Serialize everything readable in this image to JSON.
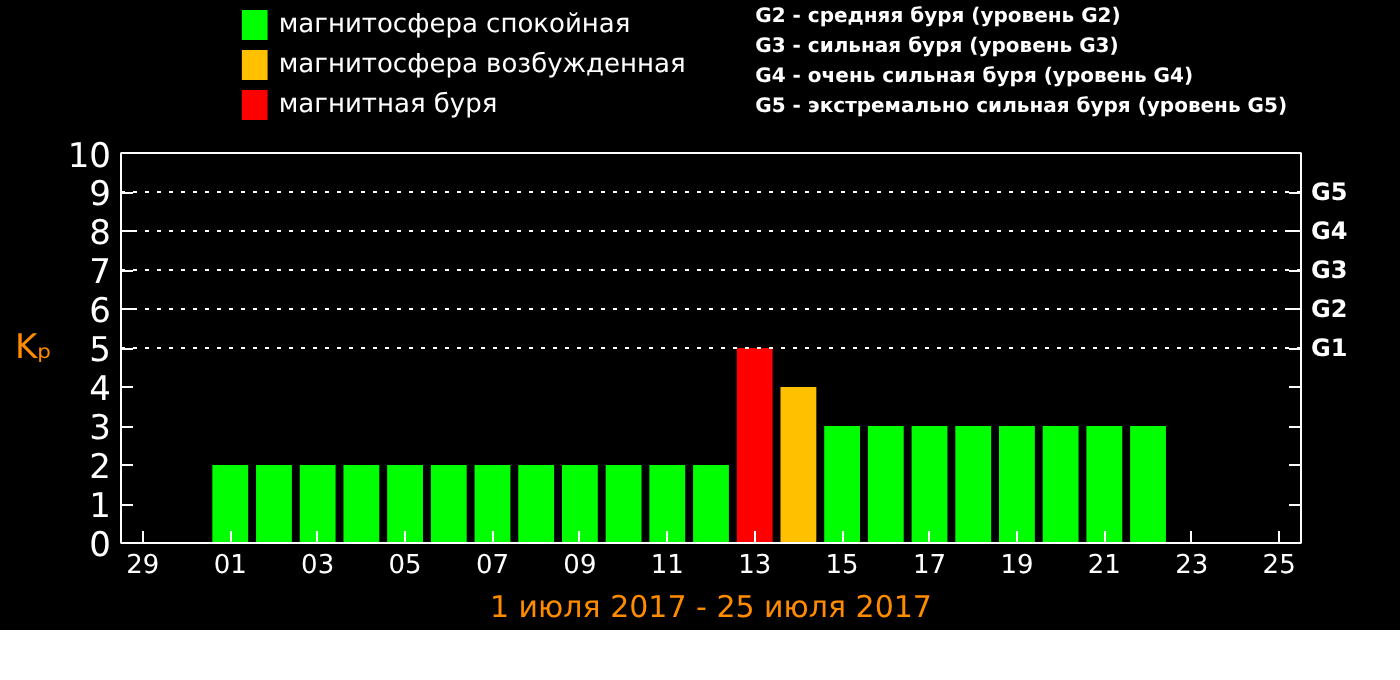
{
  "chart_data": {
    "type": "bar",
    "categories": [
      "29",
      null,
      "01",
      null,
      "03",
      null,
      "05",
      null,
      "07",
      null,
      "09",
      null,
      "11",
      null,
      "13",
      null,
      "15",
      null,
      "17",
      null,
      "19",
      null,
      "21",
      null,
      "23",
      null,
      "25"
    ],
    "series": [
      {
        "name": "магнитосфера спокойная",
        "color": "#00ff00",
        "values": [
          null,
          null,
          2,
          2,
          2,
          2,
          2,
          2,
          2,
          2,
          2,
          2,
          2,
          2,
          null,
          null,
          3,
          3,
          3,
          3,
          3,
          3,
          3,
          3,
          null,
          null,
          null
        ]
      },
      {
        "name": "магнитосфера возбужденная",
        "color": "#ffc000",
        "values": [
          null,
          null,
          null,
          null,
          null,
          null,
          null,
          null,
          null,
          null,
          null,
          null,
          null,
          null,
          null,
          4,
          null,
          null,
          null,
          null,
          null,
          null,
          null,
          null,
          null,
          null,
          null
        ]
      },
      {
        "name": "магнитная буря",
        "color": "#ff0000",
        "values": [
          null,
          null,
          null,
          null,
          null,
          null,
          null,
          null,
          null,
          null,
          null,
          null,
          null,
          null,
          5,
          null,
          null,
          null,
          null,
          null,
          null,
          null,
          null,
          null,
          null,
          null,
          null
        ]
      }
    ],
    "xlabel": "1 июля 2017 - 25 июля 2017",
    "ylabel": "Kₚ",
    "ylim": [
      0,
      10
    ],
    "yticks": [
      0,
      1,
      2,
      3,
      4,
      5,
      6,
      7,
      8,
      9,
      10
    ],
    "ref_lines": [
      {
        "axis": "y",
        "value": 5,
        "label": "G1",
        "color": "#ffffff",
        "line_style": "dotted"
      },
      {
        "axis": "y",
        "value": 6,
        "label": "G2",
        "color": "#ffffff",
        "line_style": "dotted"
      },
      {
        "axis": "y",
        "value": 7,
        "label": "G3",
        "color": "#ffffff",
        "line_style": "dotted"
      },
      {
        "axis": "y",
        "value": 8,
        "label": "G4",
        "color": "#ffffff",
        "line_style": "dotted"
      },
      {
        "axis": "y",
        "value": 9,
        "label": "G5",
        "color": "#ffffff",
        "line_style": "dotted"
      }
    ],
    "annotations": [
      "G2 - средняя буря (уровень G2)",
      "G3 - сильная буря (уровень G3)",
      "G4 - очень сильная буря (уровень G4)",
      "G5 - экстремально сильная буря (уровень G5)"
    ],
    "legend": "top left",
    "grid": false
  }
}
